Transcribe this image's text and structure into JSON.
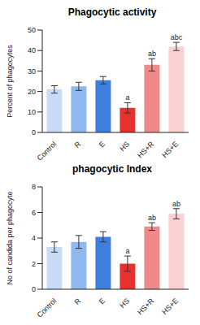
{
  "chart_data": [
    {
      "type": "bar",
      "title": "Phagocytic activity",
      "y_label": "Percent of phagocytes",
      "categories": [
        "Control",
        "R",
        "E",
        "HS",
        "HS+R",
        "HS+E"
      ],
      "values": [
        21,
        22.5,
        25.5,
        12,
        33,
        42
      ],
      "errors": [
        1.8,
        2,
        1.8,
        2.5,
        3,
        2
      ],
      "annotations": [
        null,
        null,
        null,
        "a",
        "ab",
        "abc"
      ],
      "colors": [
        "#c6dbf5",
        "#8fb8ee",
        "#3d7fdc",
        "#e8312e",
        "#f08a8a",
        "#fbd0d0"
      ],
      "ylim": [
        0,
        50
      ],
      "yticks": [
        0,
        10,
        20,
        30,
        40,
        50
      ]
    },
    {
      "type": "bar",
      "title": "phagocytic Index",
      "y_label": "No of candida per phagocyte",
      "categories": [
        "Control",
        "R",
        "E",
        "HS",
        "HS+R",
        "HS+E"
      ],
      "values": [
        3.3,
        3.7,
        4.1,
        2.0,
        4.9,
        5.9
      ],
      "errors": [
        0.4,
        0.5,
        0.4,
        0.6,
        0.3,
        0.4
      ],
      "annotations": [
        null,
        null,
        null,
        "a",
        "ab",
        "ab"
      ],
      "colors": [
        "#c6dbf5",
        "#8fb8ee",
        "#3d7fdc",
        "#e8312e",
        "#f08a8a",
        "#fbd0d0"
      ],
      "ylim": [
        0,
        8
      ],
      "yticks": [
        0,
        2,
        4,
        6,
        8
      ]
    }
  ]
}
